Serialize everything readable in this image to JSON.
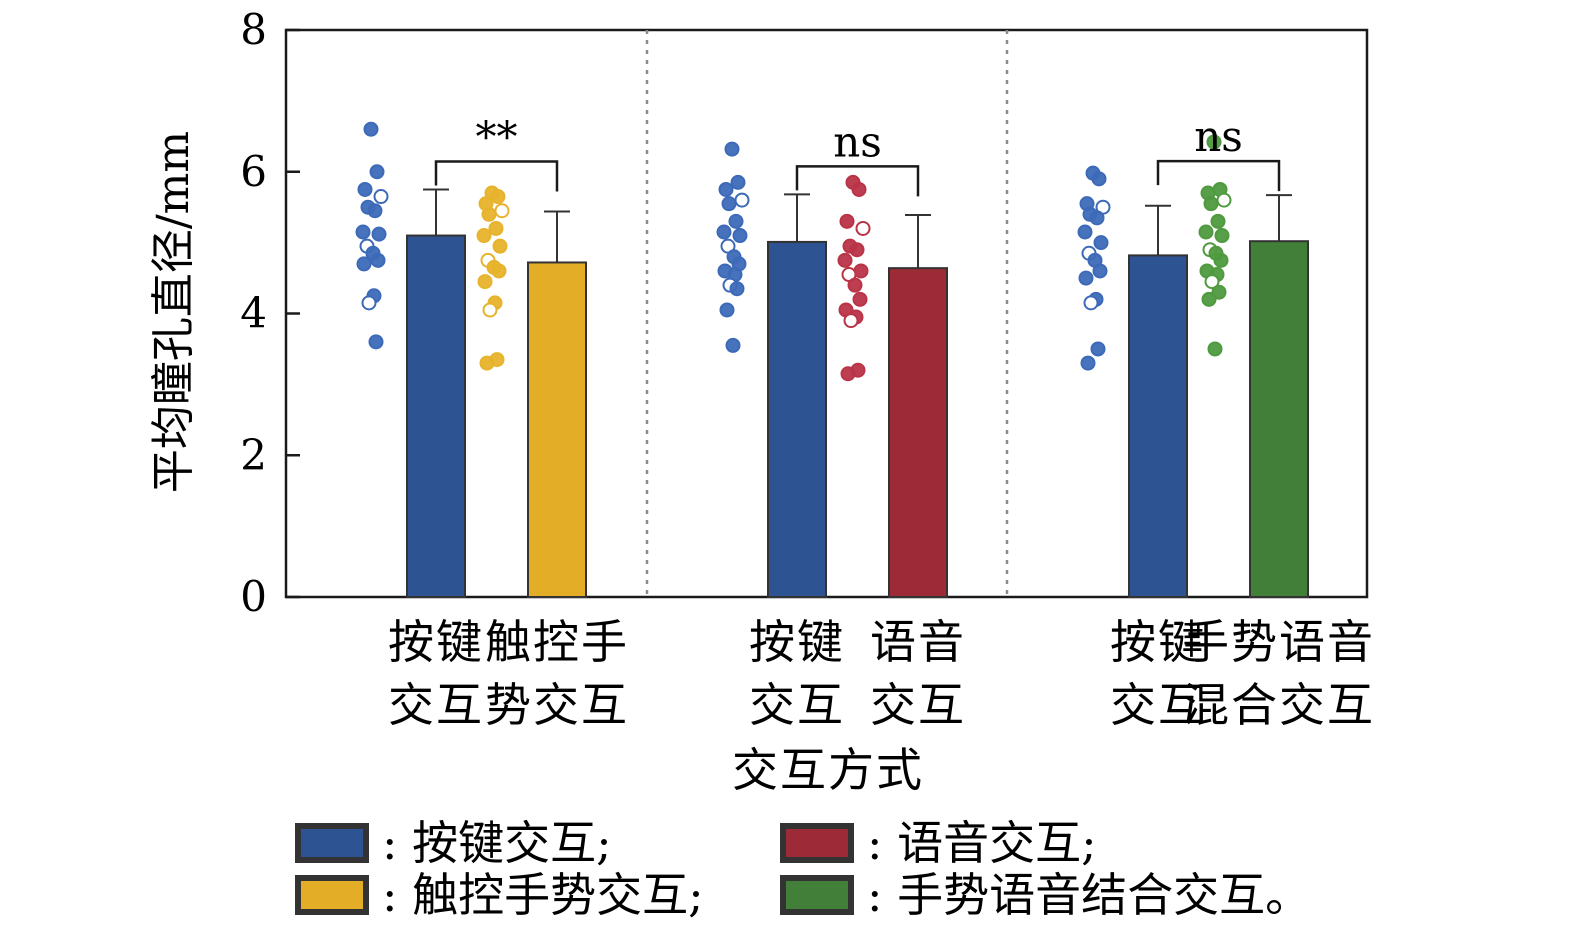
{
  "chart_data": {
    "type": "bar",
    "ylabel": "平均瞳孔直径/mm",
    "xlabel": "交互方式",
    "ylim": [
      0,
      8
    ],
    "yticks": [
      "0",
      "2",
      "4",
      "6",
      "8"
    ],
    "grid": false,
    "groups": [
      {
        "categories": [
          [
            "按键",
            "交互"
          ],
          [
            "触控手",
            "势交互"
          ]
        ],
        "bars": [
          {
            "series": "按键交互",
            "mean": 5.1,
            "error": 0.65
          },
          {
            "series": "触控手势交互",
            "mean": 4.72,
            "error": 0.72
          }
        ],
        "significance": "**",
        "points": [
          [
            6.6,
            6.0,
            5.75,
            5.65,
            5.5,
            5.45,
            5.15,
            5.12,
            4.95,
            4.85,
            4.75,
            4.7,
            4.25,
            4.15,
            3.6
          ],
          [
            5.7,
            5.65,
            5.55,
            5.45,
            5.4,
            5.2,
            5.1,
            4.95,
            4.75,
            4.65,
            4.6,
            4.45,
            4.15,
            4.05,
            3.35,
            3.3
          ]
        ]
      },
      {
        "categories": [
          [
            "按键",
            "交互"
          ],
          [
            "语音",
            "交互"
          ]
        ],
        "bars": [
          {
            "series": "按键交互",
            "mean": 5.01,
            "error": 0.67
          },
          {
            "series": "语音交互",
            "mean": 4.64,
            "error": 0.75
          }
        ],
        "significance": "ns",
        "points": [
          [
            6.32,
            5.85,
            5.75,
            5.6,
            5.55,
            5.3,
            5.15,
            5.1,
            4.95,
            4.8,
            4.7,
            4.6,
            4.55,
            4.4,
            4.35,
            4.05,
            3.55
          ],
          [
            5.85,
            5.75,
            5.3,
            5.2,
            4.95,
            4.9,
            4.75,
            4.6,
            4.55,
            4.4,
            4.2,
            4.05,
            3.95,
            3.9,
            3.2,
            3.15
          ]
        ]
      },
      {
        "categories": [
          [
            "按键",
            "交互"
          ],
          [
            "手势语音",
            "混合交互"
          ]
        ],
        "bars": [
          {
            "series": "按键交互",
            "mean": 4.82,
            "error": 0.7
          },
          {
            "series": "手势语音结合交互",
            "mean": 5.02,
            "error": 0.65
          }
        ],
        "significance": "ns",
        "points": [
          [
            5.98,
            5.9,
            5.55,
            5.5,
            5.4,
            5.35,
            5.15,
            5.0,
            4.85,
            4.75,
            4.6,
            4.5,
            4.2,
            4.15,
            3.5,
            3.3
          ],
          [
            6.42,
            5.75,
            5.7,
            5.6,
            5.55,
            5.3,
            5.15,
            5.1,
            4.9,
            4.85,
            4.75,
            4.6,
            4.55,
            4.45,
            4.3,
            4.2,
            3.5
          ]
        ]
      }
    ],
    "legend": {
      "placement": "bottom",
      "separator": ":",
      "items": [
        {
          "label": "按键交互;",
          "color": "#2e5392"
        },
        {
          "label": "语音交互;",
          "color": "#9c2b37"
        },
        {
          "label": "触控手势交互;",
          "color": "#e3ad27"
        },
        {
          "label": "手势语音结合交互。",
          "color": "#42803a"
        }
      ]
    },
    "bar_colors": [
      "#2e5392",
      "#9c2b37",
      "#e3ad27",
      "#42803a"
    ],
    "point_colors": {
      "#2e5392": "#3d6ab8",
      "#9c2b37": "#b93447",
      "#e3ad27": "#e8b32c",
      "#42803a": "#4f9a3f"
    }
  }
}
